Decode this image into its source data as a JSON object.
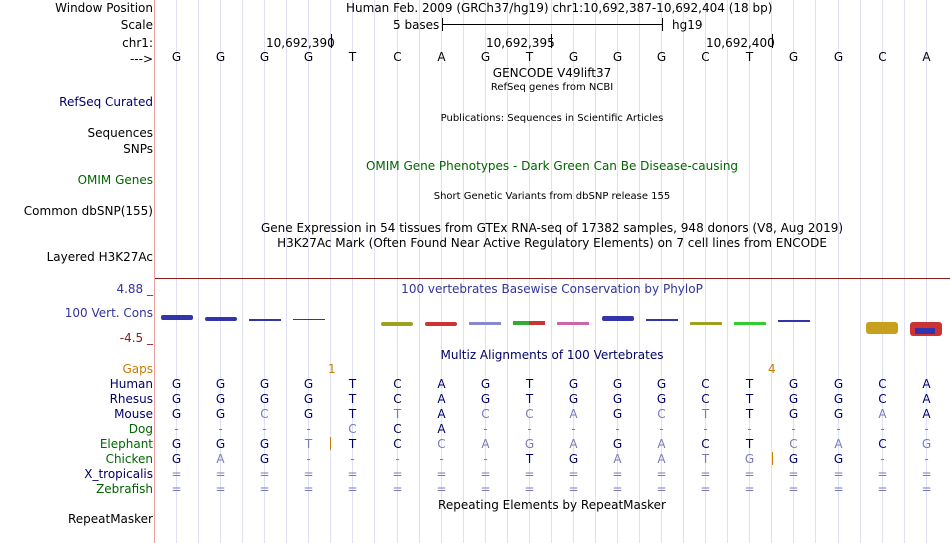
{
  "header": {
    "window_position_label": "Window Position",
    "window_position_value": "Human Feb. 2009 (GRCh37/hg19)   chr1:10,692,387-10,692,404 (18 bp)",
    "scale_label": "Scale",
    "scale_text": "5 bases",
    "scale_assembly": "hg19",
    "chr_label": "chr1:",
    "positions": [
      "10,692,390",
      "10,692,395",
      "10,692,400"
    ],
    "strand_label": "--->"
  },
  "bases": [
    "G",
    "G",
    "G",
    "G",
    "T",
    "C",
    "A",
    "G",
    "T",
    "G",
    "G",
    "G",
    "C",
    "T",
    "G",
    "G",
    "C",
    "A"
  ],
  "tracks": {
    "gencode_title": "GENCODE V49lift37",
    "refseq_subtitle": "RefSeq genes from NCBI",
    "refseq_label": "RefSeq Curated",
    "sequences_label": "Sequences",
    "publications_title": "Publications: Sequences in Scientific Articles",
    "snps_label": "SNPs",
    "omim_title": "OMIM Gene Phenotypes - Dark Green Can Be Disease-causing",
    "omim_label": "OMIM Genes",
    "dbsnp_title": "Short Genetic Variants from dbSNP release 155",
    "dbsnp_label": "Common dbSNP(155)",
    "gtex_title": "Gene Expression in 54 tissues from GTEx RNA-seq of 17382 samples, 948 donors (V8, Aug 2019)",
    "h3k27_title": "H3K27Ac Mark (Often Found Near Active Regulatory Elements) on 7 cell lines from ENCODE",
    "h3k27_label": "Layered H3K27Ac",
    "cons_title": "100 vertebrates Basewise Conservation by PhyloP",
    "cons_label": "100 Vert. Cons",
    "cons_max": "4.88 _",
    "cons_min": "-4.5 _",
    "multiz_title": "Multiz Alignments of 100 Vertebrates",
    "gaps_label": "Gaps",
    "gap_counts": [
      "1",
      "4"
    ],
    "repeat_title": "Repeating Elements by RepeatMasker",
    "repeat_label": "RepeatMasker"
  },
  "species": [
    {
      "name": "Human",
      "cells": [
        "G",
        "G",
        "G",
        "G",
        "T",
        "C",
        "A",
        "G",
        "T",
        "G",
        "G",
        "G",
        "C",
        "T",
        "G",
        "G",
        "C",
        "A"
      ]
    },
    {
      "name": "Rhesus",
      "cells": [
        "G",
        "G",
        "G",
        "G",
        "T",
        "C",
        "A",
        "G",
        "T",
        "G",
        "G",
        "G",
        "C",
        "T",
        "G",
        "G",
        "C",
        "A"
      ]
    },
    {
      "name": "Mouse",
      "cells": [
        "G",
        "G",
        "C",
        "G",
        "T",
        "T",
        "A",
        "C",
        "C",
        "A",
        "G",
        "C",
        "T",
        "T",
        "G",
        "G",
        "A",
        "A"
      ]
    },
    {
      "name": "Dog",
      "cells": [
        "-",
        "-",
        "-",
        "-",
        "C",
        "C",
        "A",
        "-",
        "-",
        "-",
        "-",
        "-",
        "-",
        "-",
        "-",
        "-",
        "-",
        "-"
      ]
    },
    {
      "name": "Elephant",
      "cells": [
        "G",
        "G",
        "G",
        "T",
        "T",
        "C",
        "C",
        "A",
        "G",
        "A",
        "G",
        "A",
        "C",
        "T",
        "C",
        "A",
        "C",
        "G"
      ]
    },
    {
      "name": "Chicken",
      "cells": [
        "G",
        "A",
        "G",
        "-",
        "-",
        "-",
        "-",
        "-",
        "T",
        "G",
        "A",
        "A",
        "T",
        "G",
        "G",
        "G",
        "-",
        "-"
      ]
    },
    {
      "name": "X_tropicalis",
      "cells": [
        "=",
        "=",
        "=",
        "=",
        "=",
        "=",
        "=",
        "=",
        "=",
        "=",
        "=",
        "=",
        "=",
        "=",
        "=",
        "=",
        "=",
        "="
      ]
    },
    {
      "name": "Zebrafish",
      "cells": [
        "=",
        "=",
        "=",
        "=",
        "=",
        "=",
        "=",
        "=",
        "=",
        "=",
        "=",
        "=",
        "=",
        "=",
        "=",
        "=",
        "=",
        "="
      ]
    }
  ],
  "colors": {
    "match": "#000066",
    "mismatch": "#7a7ab8",
    "label_blue": "#333399",
    "label_green": "#006400",
    "gaps_orange": "#cc7a00",
    "grid": "#dfe0f2",
    "border": "#e8a0a0"
  }
}
